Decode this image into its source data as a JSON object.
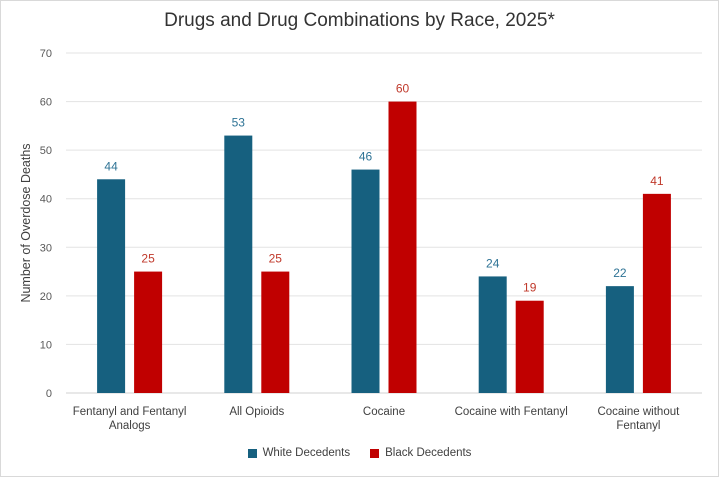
{
  "chart_data": {
    "type": "bar",
    "title": "Drugs and Drug Combinations by Race, 2025*",
    "xlabel": "",
    "ylabel": "Number of Overdose Deaths",
    "ylim": [
      0,
      70
    ],
    "yticks": [
      0,
      10,
      20,
      30,
      40,
      50,
      60,
      70
    ],
    "grid": true,
    "legend_position": "bottom",
    "categories": [
      [
        "Fentanyl and Fentanyl",
        "Analogs"
      ],
      [
        "All Opioids"
      ],
      [
        "Cocaine"
      ],
      [
        "Cocaine with Fentanyl"
      ],
      [
        "Cocaine without",
        "Fentanyl"
      ]
    ],
    "series": [
      {
        "name": "White Decedents",
        "color": "#16607f",
        "label_color": "#2e7395",
        "values": [
          44,
          53,
          46,
          24,
          22
        ]
      },
      {
        "name": "Black Decedents",
        "color": "#c00000",
        "label_color": "#c0392b",
        "values": [
          25,
          25,
          60,
          19,
          41
        ]
      }
    ]
  }
}
